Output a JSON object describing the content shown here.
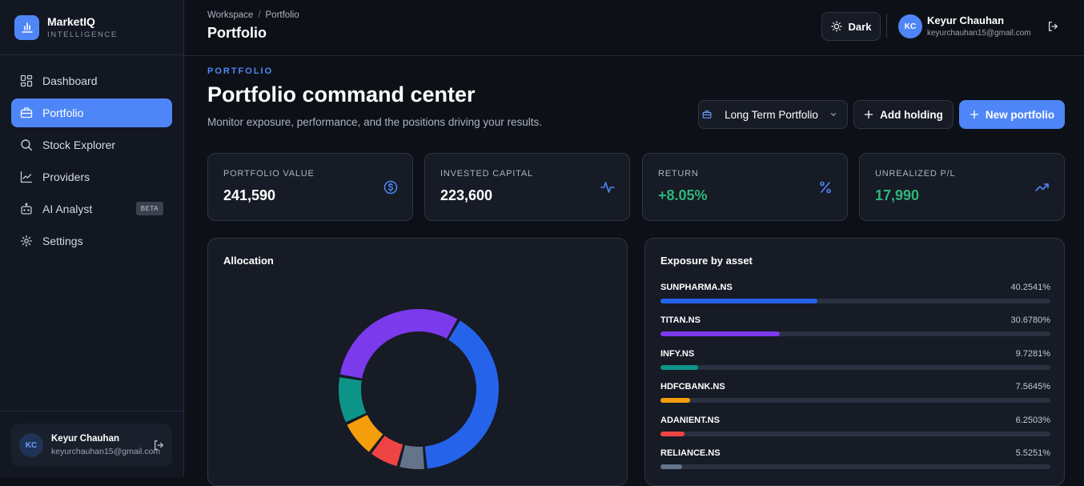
{
  "brand": {
    "name": "MarketIQ",
    "subtitle": "INTELLIGENCE"
  },
  "sidebar": {
    "items": [
      {
        "label": "Dashboard",
        "icon": "grid-icon"
      },
      {
        "label": "Portfolio",
        "icon": "briefcase-icon",
        "active": true
      },
      {
        "label": "Stock Explorer",
        "icon": "search-icon"
      },
      {
        "label": "Providers",
        "icon": "line-chart-icon"
      },
      {
        "label": "AI Analyst",
        "icon": "bot-icon",
        "badge": "BETA"
      },
      {
        "label": "Settings",
        "icon": "gear-icon"
      }
    ],
    "user": {
      "initials": "KC",
      "name": "Keyur Chauhan",
      "email": "keyurchauhan15@gmail.com"
    }
  },
  "topbar": {
    "breadcrumb": [
      "Workspace",
      "Portfolio"
    ],
    "title": "Portfolio",
    "theme_label": "Dark",
    "user": {
      "initials": "KC",
      "name": "Keyur Chauhan",
      "email": "keyurchauhan15@gmail.com"
    }
  },
  "hero": {
    "kicker": "PORTFOLIO",
    "title": "Portfolio command center",
    "subtitle": "Monitor exposure, performance, and the positions driving your results.",
    "portfolio_select": "Long Term Portfolio",
    "add_holding": "Add holding",
    "new_portfolio": "New portfolio"
  },
  "stats": [
    {
      "label": "PORTFOLIO VALUE",
      "value": "241,590",
      "icon": "dollar-circle-icon",
      "tone": "default"
    },
    {
      "label": "INVESTED CAPITAL",
      "value": "223,600",
      "icon": "pulse-icon",
      "tone": "default"
    },
    {
      "label": "RETURN",
      "value": "+8.05%",
      "icon": "percent-icon",
      "tone": "positive"
    },
    {
      "label": "UNREALIZED P/L",
      "value": "17,990",
      "icon": "trending-up-icon",
      "tone": "positive"
    }
  ],
  "allocation": {
    "title": "Allocation",
    "colors": [
      "#2563eb",
      "#64748b",
      "#ef4444",
      "#f59e0b",
      "#0d9488",
      "#7c3aed"
    ]
  },
  "exposure": {
    "title": "Exposure by asset",
    "rows": [
      {
        "symbol": "SUNPHARMA.NS",
        "percent": "40.2541%",
        "value": 40.2541,
        "color": "#2563eb"
      },
      {
        "symbol": "TITAN.NS",
        "percent": "30.6780%",
        "value": 30.678,
        "color": "#7c3aed"
      },
      {
        "symbol": "INFY.NS",
        "percent": "9.7281%",
        "value": 9.7281,
        "color": "#0d9488"
      },
      {
        "symbol": "HDFCBANK.NS",
        "percent": "7.5645%",
        "value": 7.5645,
        "color": "#f59e0b"
      },
      {
        "symbol": "ADANIENT.NS",
        "percent": "6.2503%",
        "value": 6.2503,
        "color": "#ef4444"
      },
      {
        "symbol": "RELIANCE.NS",
        "percent": "5.5251%",
        "value": 5.5251,
        "color": "#64748b"
      }
    ]
  }
}
